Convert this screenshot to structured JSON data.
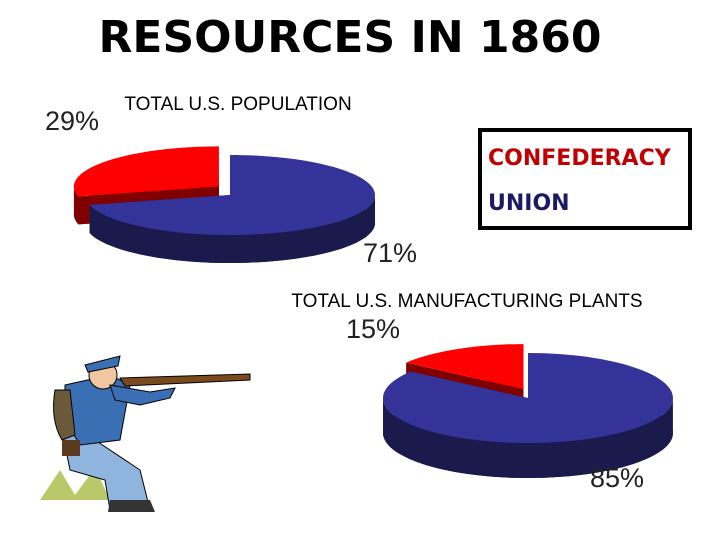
{
  "title": "RESOURCES IN 1860",
  "legend": [
    "CONFEDERACY",
    "UNION"
  ],
  "chart_data": [
    {
      "type": "pie",
      "title": "TOTAL U.S. POPULATION",
      "values": [
        29,
        71
      ],
      "value_labels": [
        "29%",
        "71%"
      ],
      "colors": [
        "#ff0000",
        "#333399"
      ]
    },
    {
      "type": "pie",
      "title": "TOTAL U.S. MANUFACTURING PLANTS",
      "values": [
        15,
        85
      ],
      "value_labels": [
        "15%",
        "85%"
      ],
      "colors": [
        "#ff0000",
        "#333399"
      ]
    }
  ]
}
